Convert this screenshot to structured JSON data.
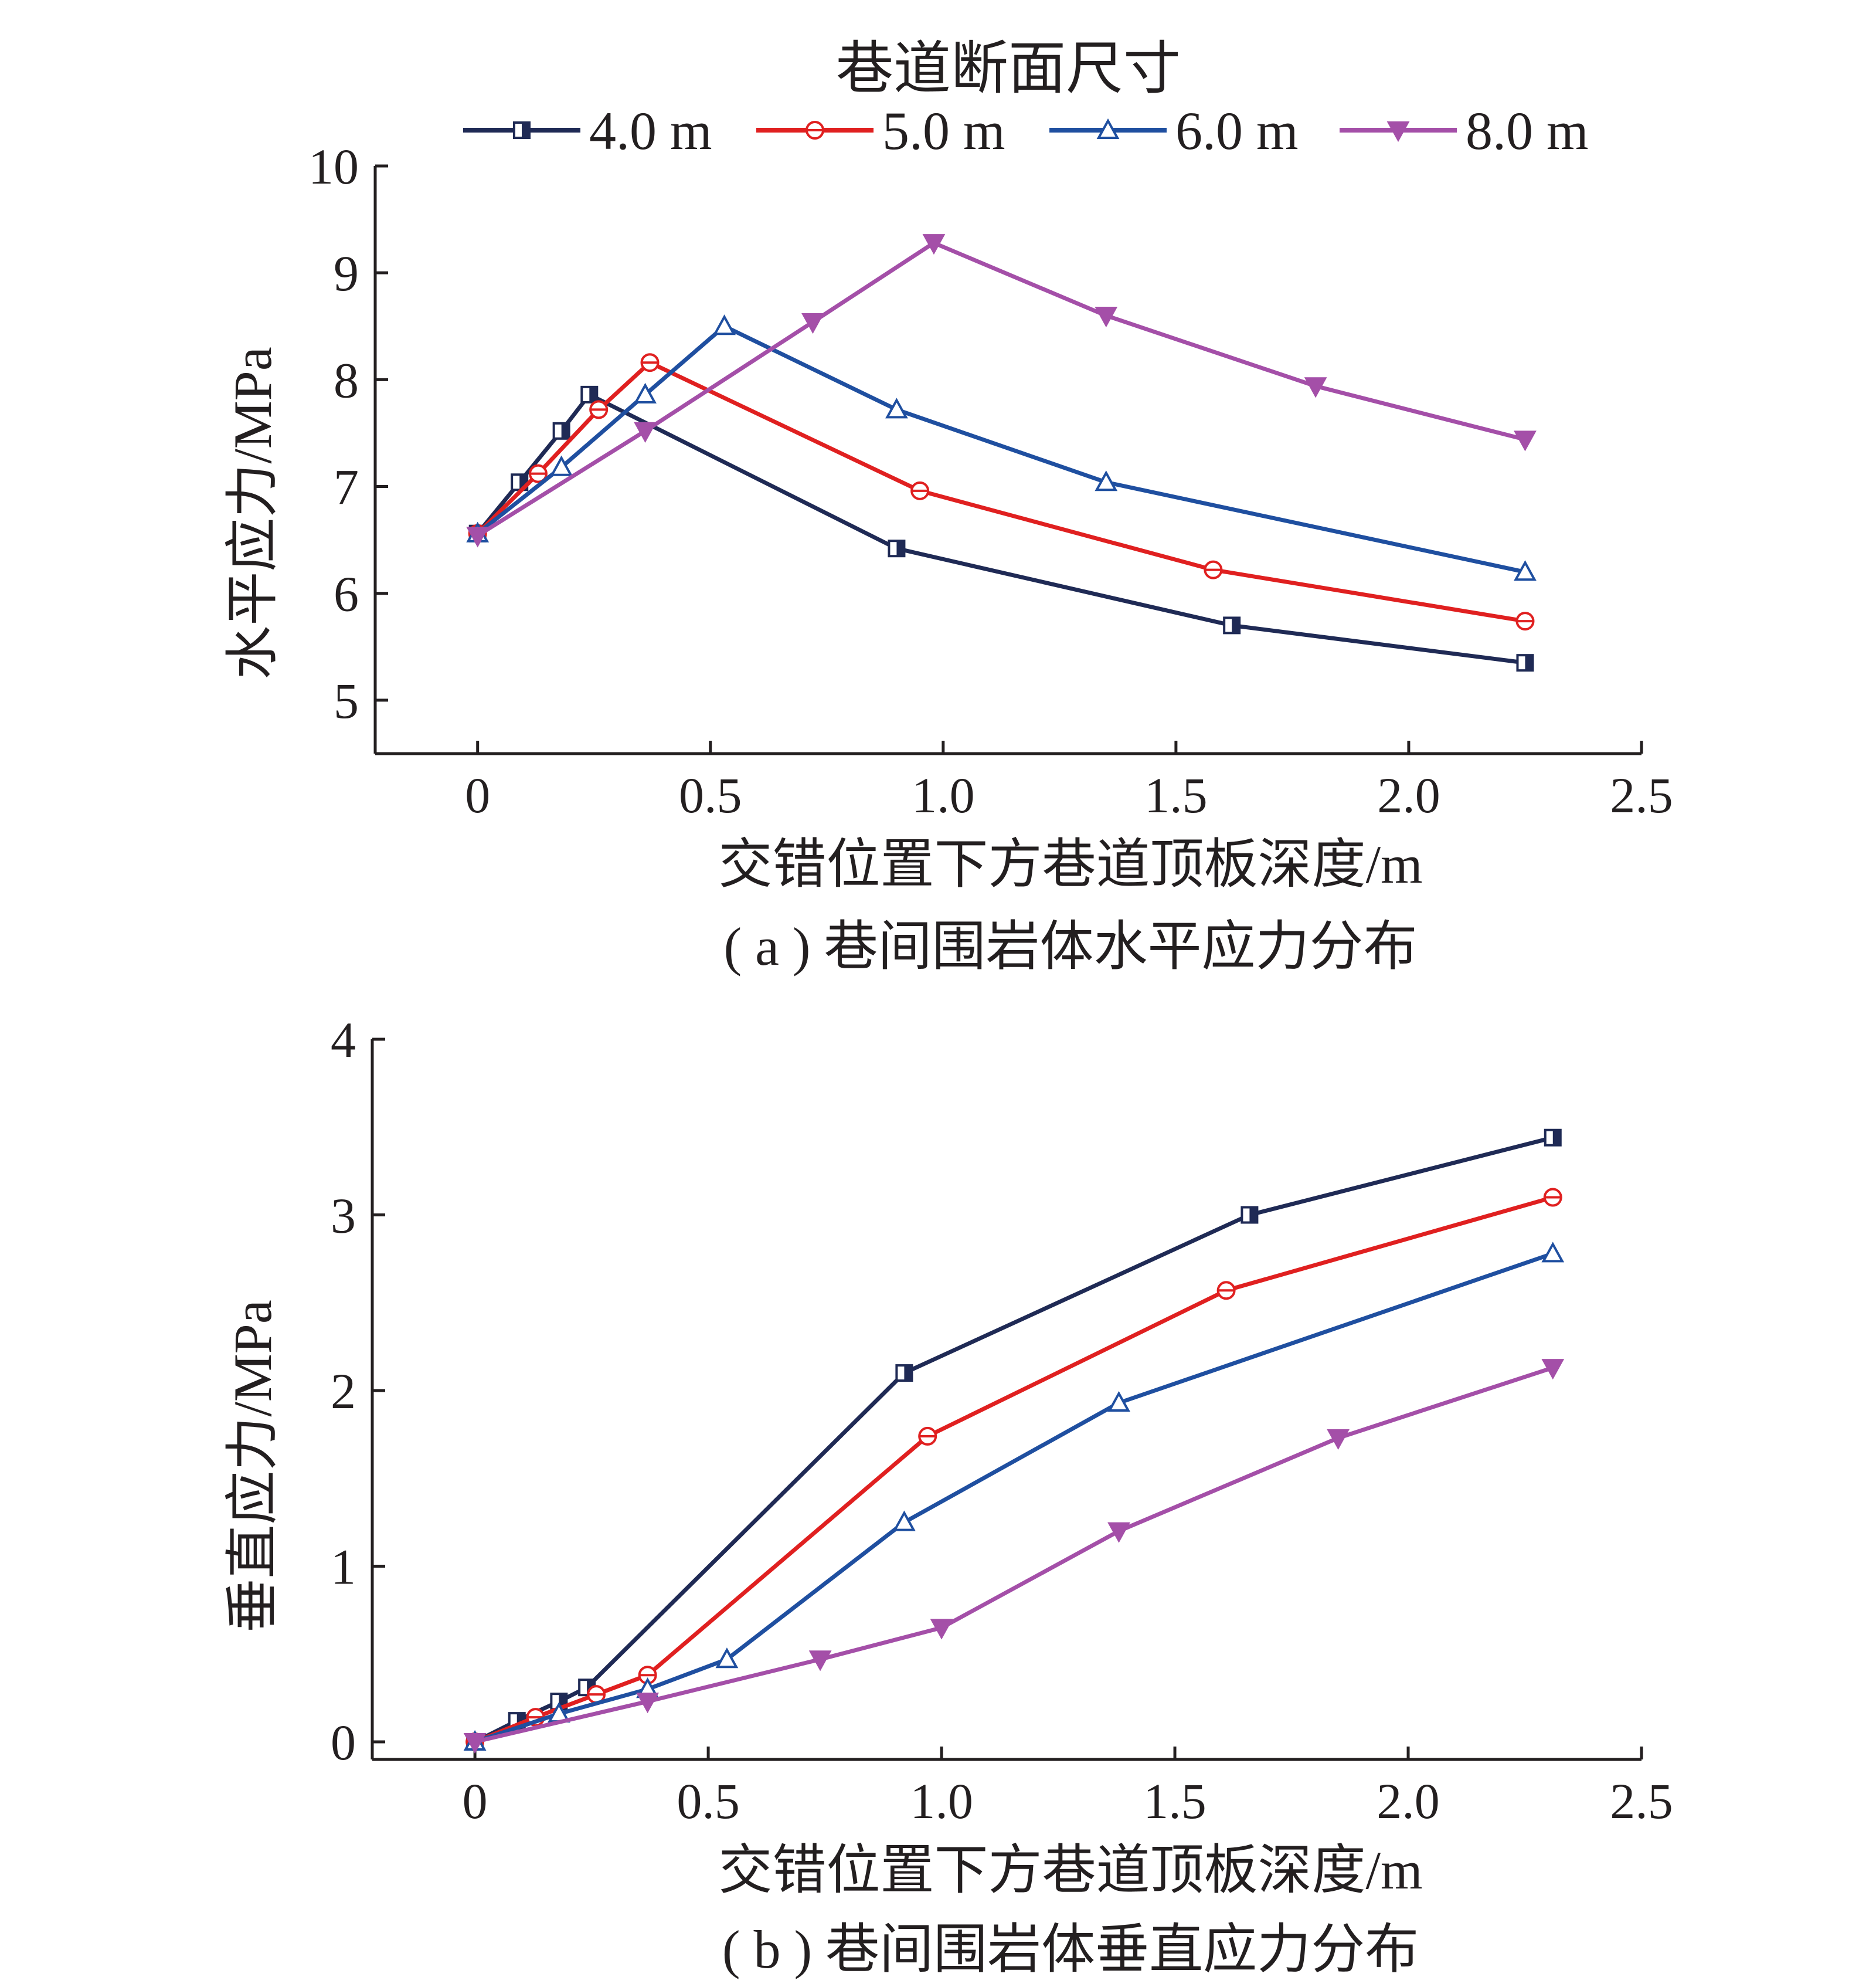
{
  "legend": {
    "title": "巷道断面尺寸",
    "entries": [
      "4.0 m",
      "5.0 m",
      "6.0 m",
      "8.0 m"
    ]
  },
  "series_style": [
    {
      "color": "#1f2a55",
      "marker": "square"
    },
    {
      "color": "#e02020",
      "marker": "circle"
    },
    {
      "color": "#1f4fa0",
      "marker": "triangle-up"
    },
    {
      "color": "#a44fa8",
      "marker": "triangle-down"
    }
  ],
  "chart_data": [
    {
      "type": "line",
      "caption": "( a ) 巷间围岩体水平应力分布",
      "xlabel": "交错位置下方巷道顶板深度/m",
      "ylabel": "水平应力/MPa",
      "xlim": [
        -0.22,
        2.5
      ],
      "ylim": [
        4.5,
        10
      ],
      "xticks": [
        0,
        0.5,
        1.0,
        1.5,
        2.0,
        2.5
      ],
      "xtick_labels": [
        "0",
        "0.5",
        "1.0",
        "1.5",
        "2.0",
        "2.5"
      ],
      "yticks": [
        5,
        6,
        7,
        8,
        9,
        10
      ],
      "ytick_labels": [
        "5",
        "6",
        "7",
        "8",
        "9",
        "10"
      ],
      "series": [
        {
          "name": "4.0 m",
          "points": [
            [
              0,
              6.56
            ],
            [
              0.09,
              7.04
            ],
            [
              0.18,
              7.52
            ],
            [
              0.24,
              7.86
            ],
            [
              0.9,
              6.42
            ],
            [
              1.62,
              5.7
            ],
            [
              2.25,
              5.35
            ]
          ]
        },
        {
          "name": "5.0 m",
          "points": [
            [
              0,
              6.56
            ],
            [
              0.13,
              7.12
            ],
            [
              0.26,
              7.72
            ],
            [
              0.37,
              8.16
            ],
            [
              0.95,
              6.96
            ],
            [
              1.58,
              6.22
            ],
            [
              2.25,
              5.74
            ]
          ]
        },
        {
          "name": "6.0 m",
          "points": [
            [
              0,
              6.56
            ],
            [
              0.18,
              7.18
            ],
            [
              0.36,
              7.86
            ],
            [
              0.53,
              8.5
            ],
            [
              0.9,
              7.72
            ],
            [
              1.35,
              7.04
            ],
            [
              2.25,
              6.2
            ]
          ]
        },
        {
          "name": "8.0 m",
          "points": [
            [
              0,
              6.54
            ],
            [
              0.36,
              7.52
            ],
            [
              0.72,
              8.54
            ],
            [
              0.98,
              9.28
            ],
            [
              1.35,
              8.6
            ],
            [
              1.8,
              7.94
            ],
            [
              2.25,
              7.44
            ]
          ]
        }
      ]
    },
    {
      "type": "line",
      "caption": "( b ) 巷间围岩体垂直应力分布",
      "xlabel": "交错位置下方巷道顶板深度/m",
      "ylabel": "垂直应力/MPa",
      "xlim": [
        -0.22,
        2.5
      ],
      "ylim": [
        -0.1,
        4
      ],
      "xticks": [
        0,
        0.5,
        1.0,
        1.5,
        2.0,
        2.5
      ],
      "xtick_labels": [
        "0",
        "0.5",
        "1.0",
        "1.5",
        "2.0",
        "2.5"
      ],
      "yticks": [
        0,
        1,
        2,
        3,
        4
      ],
      "ytick_labels": [
        "0",
        "1",
        "2",
        "3",
        "4"
      ],
      "series": [
        {
          "name": "4.0 m",
          "points": [
            [
              0,
              0
            ],
            [
              0.09,
              0.12
            ],
            [
              0.18,
              0.23
            ],
            [
              0.24,
              0.31
            ],
            [
              0.92,
              2.1
            ],
            [
              1.66,
              3.0
            ],
            [
              2.31,
              3.44
            ]
          ]
        },
        {
          "name": "5.0 m",
          "points": [
            [
              0,
              0
            ],
            [
              0.13,
              0.14
            ],
            [
              0.26,
              0.27
            ],
            [
              0.37,
              0.38
            ],
            [
              0.97,
              1.74
            ],
            [
              1.61,
              2.57
            ],
            [
              2.31,
              3.1
            ]
          ]
        },
        {
          "name": "6.0 m",
          "points": [
            [
              0,
              0
            ],
            [
              0.18,
              0.16
            ],
            [
              0.37,
              0.3
            ],
            [
              0.54,
              0.47
            ],
            [
              0.92,
              1.25
            ],
            [
              1.38,
              1.93
            ],
            [
              2.31,
              2.78
            ]
          ]
        },
        {
          "name": "8.0 m",
          "points": [
            [
              0,
              0
            ],
            [
              0.37,
              0.23
            ],
            [
              0.74,
              0.47
            ],
            [
              1.0,
              0.65
            ],
            [
              1.38,
              1.2
            ],
            [
              1.85,
              1.73
            ],
            [
              2.31,
              2.13
            ]
          ]
        }
      ]
    }
  ]
}
